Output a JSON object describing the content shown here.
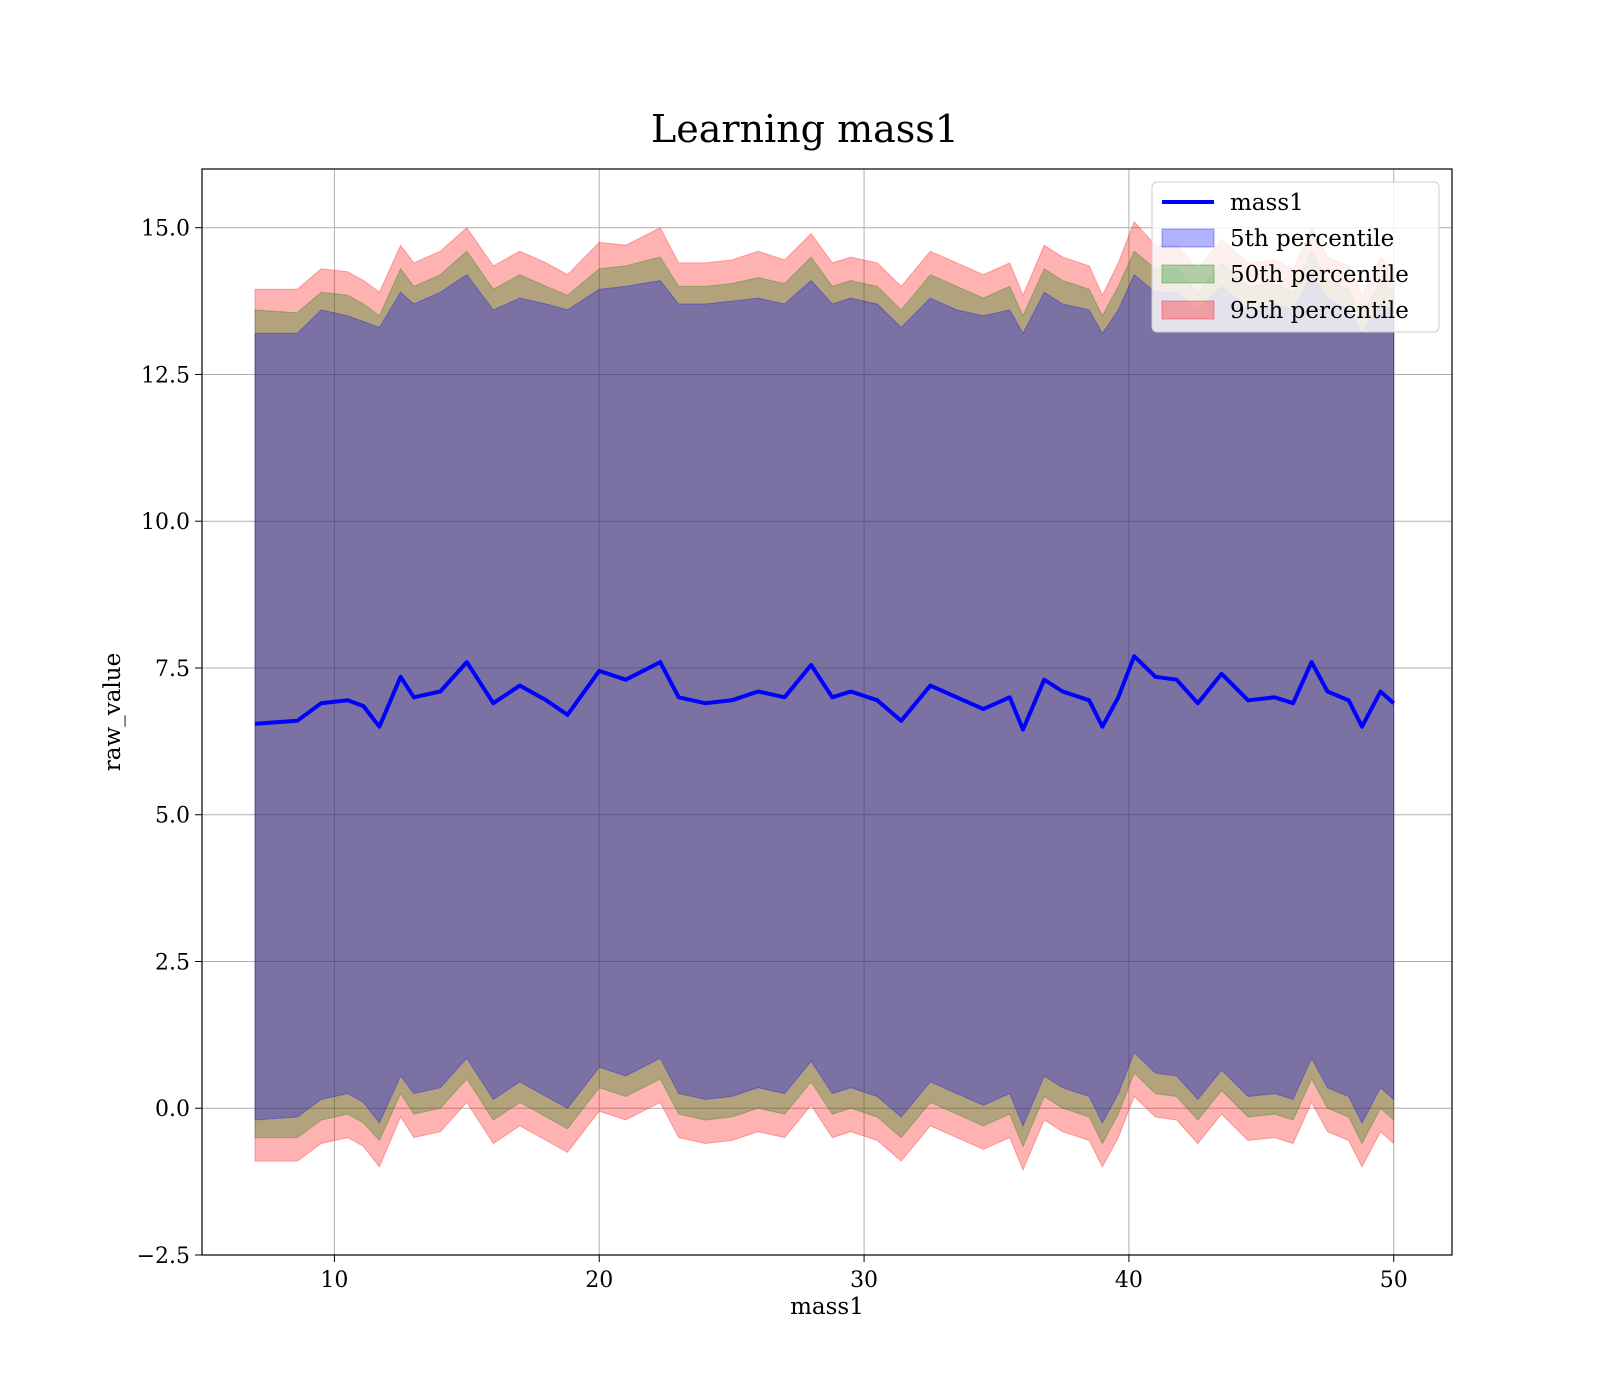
{
  "chart_data": {
    "type": "line",
    "title": "Learning mass1",
    "xlabel": "mass1",
    "ylabel": "raw_value",
    "xlim": [
      5,
      52.2
    ],
    "ylim": [
      -2.5,
      16.0
    ],
    "xticks": [
      10,
      20,
      30,
      40,
      50
    ],
    "yticks": [
      -2.5,
      0.0,
      2.5,
      5.0,
      7.5,
      10.0,
      12.5,
      15.0
    ],
    "xtick_labels": [
      "10",
      "20",
      "30",
      "40",
      "50"
    ],
    "ytick_labels": [
      "−2.5",
      "0.0",
      "2.5",
      "5.0",
      "7.5",
      "10.0",
      "12.5",
      "15.0"
    ],
    "grid": true,
    "legend_position": "upper right",
    "x": [
      7.0,
      8.6,
      9.5,
      10.5,
      11.1,
      11.7,
      12.5,
      13.0,
      14.0,
      15.0,
      16.0,
      17.0,
      18.0,
      18.8,
      20.0,
      21.0,
      22.3,
      23.0,
      24.0,
      25.0,
      26.0,
      27.0,
      28.0,
      28.8,
      29.5,
      30.5,
      31.4,
      32.5,
      33.5,
      34.5,
      35.5,
      36.0,
      36.8,
      37.5,
      38.5,
      39.0,
      39.6,
      40.2,
      41.0,
      41.8,
      42.6,
      43.5,
      44.5,
      45.5,
      46.2,
      46.9,
      47.5,
      48.3,
      48.8,
      49.5,
      50.0
    ],
    "series": [
      {
        "name": "mass1",
        "color": "#0000ff",
        "values": [
          6.55,
          6.6,
          6.9,
          6.95,
          6.85,
          6.5,
          7.35,
          7.0,
          7.1,
          7.6,
          6.9,
          7.2,
          6.95,
          6.7,
          7.45,
          7.3,
          7.6,
          7.0,
          6.9,
          6.95,
          7.1,
          7.0,
          7.55,
          7.0,
          7.1,
          6.95,
          6.6,
          7.2,
          7.0,
          6.8,
          7.0,
          6.45,
          7.3,
          7.1,
          6.95,
          6.5,
          7.0,
          7.7,
          7.35,
          7.3,
          6.9,
          7.4,
          6.95,
          7.0,
          6.9,
          7.6,
          7.1,
          6.95,
          6.5,
          7.1,
          6.9
        ]
      }
    ],
    "bands": [
      {
        "name": "5th percentile",
        "color": "#0000ff",
        "upper": [
          13.2,
          13.2,
          13.6,
          13.5,
          13.4,
          13.3,
          13.9,
          13.7,
          13.9,
          14.2,
          13.6,
          13.8,
          13.7,
          13.6,
          13.95,
          14.0,
          14.1,
          13.7,
          13.7,
          13.75,
          13.8,
          13.7,
          14.1,
          13.7,
          13.8,
          13.7,
          13.3,
          13.8,
          13.6,
          13.5,
          13.6,
          13.2,
          13.9,
          13.7,
          13.6,
          13.2,
          13.6,
          14.2,
          13.9,
          13.9,
          13.6,
          14.0,
          13.6,
          13.7,
          13.6,
          14.2,
          13.8,
          13.6,
          13.2,
          13.7,
          13.6
        ],
        "lower": [
          -0.2,
          -0.15,
          0.15,
          0.25,
          0.1,
          -0.25,
          0.55,
          0.25,
          0.35,
          0.85,
          0.15,
          0.45,
          0.2,
          0.0,
          0.7,
          0.55,
          0.85,
          0.25,
          0.15,
          0.2,
          0.35,
          0.25,
          0.8,
          0.25,
          0.35,
          0.2,
          -0.15,
          0.45,
          0.25,
          0.05,
          0.25,
          -0.3,
          0.55,
          0.35,
          0.2,
          -0.25,
          0.25,
          0.95,
          0.6,
          0.55,
          0.15,
          0.65,
          0.2,
          0.25,
          0.15,
          0.85,
          0.35,
          0.2,
          -0.25,
          0.35,
          0.15
        ]
      },
      {
        "name": "50th percentile",
        "color": "#008000",
        "upper": [
          13.6,
          13.55,
          13.9,
          13.85,
          13.7,
          13.5,
          14.3,
          14.0,
          14.2,
          14.6,
          13.95,
          14.2,
          14.0,
          13.85,
          14.3,
          14.35,
          14.5,
          14.0,
          14.0,
          14.05,
          14.15,
          14.05,
          14.5,
          14.0,
          14.1,
          14.0,
          13.6,
          14.2,
          14.0,
          13.8,
          14.0,
          13.5,
          14.3,
          14.1,
          13.95,
          13.5,
          14.0,
          14.6,
          14.3,
          14.3,
          13.9,
          14.4,
          14.0,
          14.05,
          13.9,
          14.6,
          14.1,
          13.95,
          13.5,
          14.1,
          13.9
        ],
        "lower": [
          -0.5,
          -0.5,
          -0.2,
          -0.1,
          -0.25,
          -0.55,
          0.25,
          -0.1,
          0.0,
          0.5,
          -0.2,
          0.1,
          -0.15,
          -0.35,
          0.35,
          0.2,
          0.5,
          -0.1,
          -0.2,
          -0.15,
          0.0,
          -0.1,
          0.45,
          -0.1,
          0.0,
          -0.15,
          -0.5,
          0.1,
          -0.1,
          -0.3,
          -0.1,
          -0.65,
          0.2,
          0.0,
          -0.15,
          -0.6,
          -0.1,
          0.6,
          0.25,
          0.2,
          -0.2,
          0.3,
          -0.15,
          -0.1,
          -0.2,
          0.5,
          0.0,
          -0.15,
          -0.6,
          0.0,
          -0.2
        ]
      },
      {
        "name": "95th percentile",
        "color": "#ff0000",
        "upper": [
          13.95,
          13.95,
          14.3,
          14.25,
          14.1,
          13.9,
          14.7,
          14.4,
          14.6,
          15.0,
          14.35,
          14.6,
          14.4,
          14.2,
          14.75,
          14.7,
          15.0,
          14.4,
          14.4,
          14.45,
          14.6,
          14.45,
          14.9,
          14.4,
          14.5,
          14.4,
          14.0,
          14.6,
          14.4,
          14.2,
          14.4,
          13.85,
          14.7,
          14.5,
          14.35,
          13.85,
          14.4,
          15.1,
          14.7,
          14.7,
          14.3,
          14.8,
          14.4,
          14.45,
          14.3,
          15.0,
          14.5,
          14.35,
          13.85,
          14.5,
          14.3
        ],
        "lower": [
          -0.9,
          -0.9,
          -0.6,
          -0.5,
          -0.65,
          -1.0,
          -0.15,
          -0.5,
          -0.4,
          0.1,
          -0.6,
          -0.3,
          -0.55,
          -0.75,
          -0.05,
          -0.2,
          0.1,
          -0.5,
          -0.6,
          -0.55,
          -0.4,
          -0.5,
          0.05,
          -0.5,
          -0.4,
          -0.55,
          -0.9,
          -0.3,
          -0.5,
          -0.7,
          -0.5,
          -1.05,
          -0.2,
          -0.4,
          -0.55,
          -1.0,
          -0.5,
          0.2,
          -0.15,
          -0.2,
          -0.6,
          -0.1,
          -0.55,
          -0.5,
          -0.6,
          0.1,
          -0.4,
          -0.55,
          -1.0,
          -0.4,
          -0.6
        ]
      }
    ],
    "legend": [
      {
        "label": "mass1",
        "kind": "line",
        "color": "#0000ff"
      },
      {
        "label": "5th percentile",
        "kind": "patch",
        "color": "#0000ff"
      },
      {
        "label": "50th percentile",
        "kind": "patch",
        "color": "#008000"
      },
      {
        "label": "95th percentile",
        "kind": "patch",
        "color": "#ff0000"
      }
    ]
  }
}
